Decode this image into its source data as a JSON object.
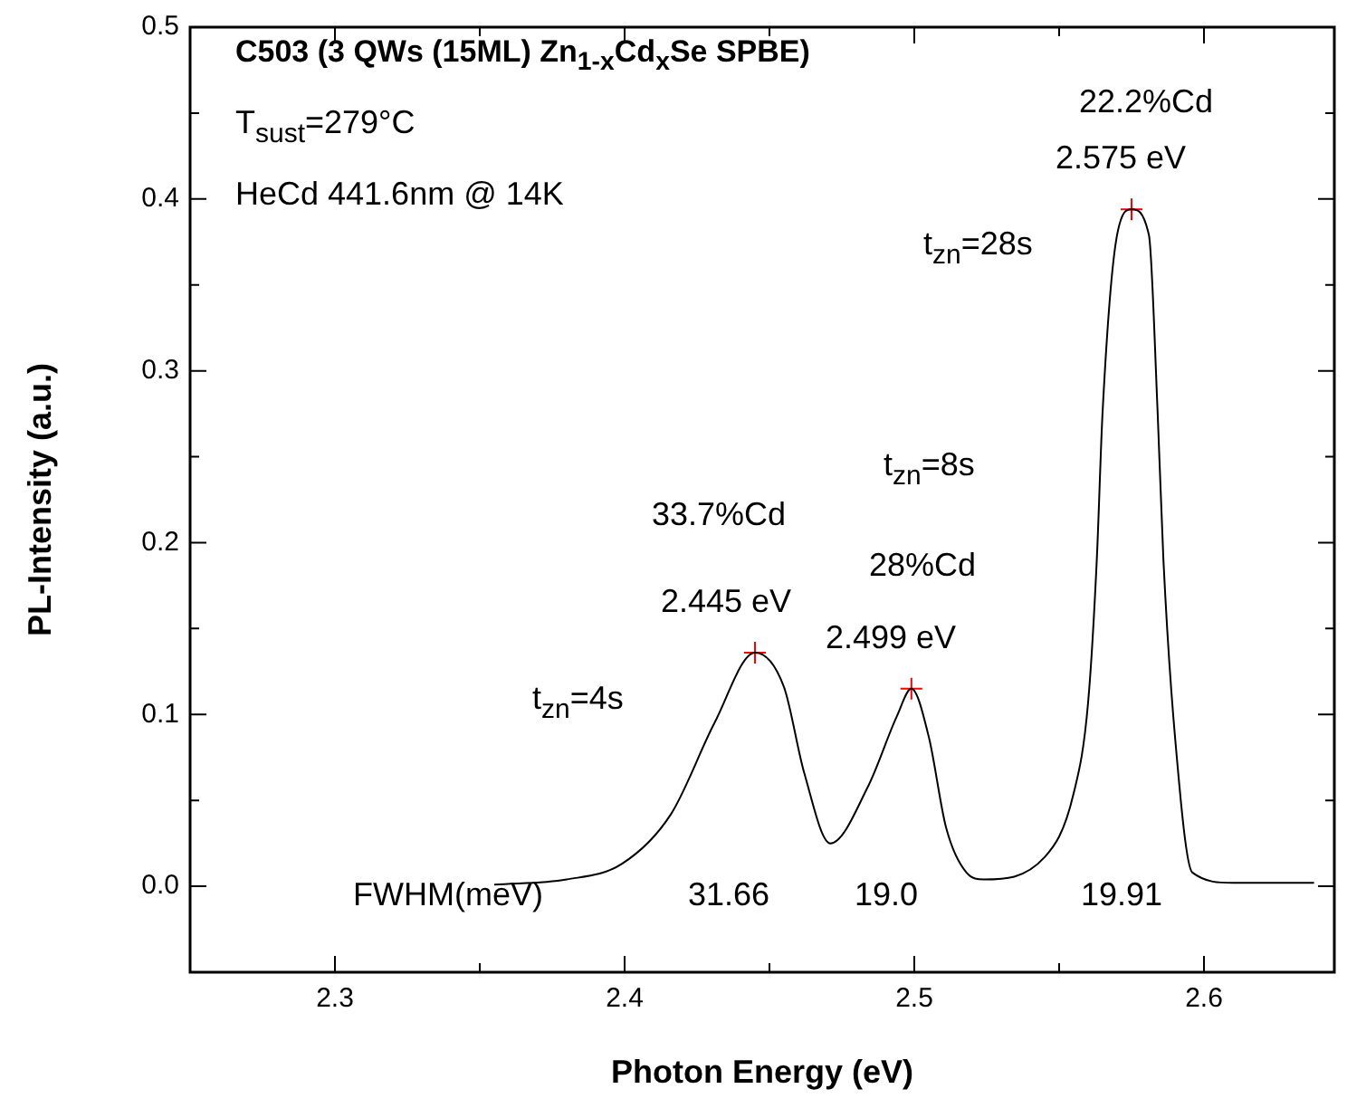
{
  "chart_data": {
    "type": "line",
    "title": "C503 (3 QWs (15ML) Zn$_{1-x}$Cd$_{x}$Se SPBE)",
    "xlabel": "Photon Energy (eV)",
    "ylabel": "PL-Intensity (a.u.)",
    "xlim": [
      2.25,
      2.645
    ],
    "ylim": [
      -0.05,
      0.5
    ],
    "xticks": [
      2.3,
      {
        "value": 2.35,
        "label": null
      },
      2.4,
      {
        "value": 2.45,
        "label": null
      },
      2.5,
      {
        "value": 2.55,
        "label": null
      },
      2.6
    ],
    "yticks": [
      {
        "value": 0,
        "label": "0.0"
      },
      {
        "value": 0.05,
        "label": null
      },
      0.1,
      {
        "value": 0.15,
        "label": null
      },
      0.2,
      {
        "value": 0.25,
        "label": null
      },
      0.3,
      {
        "value": 0.35,
        "label": null
      },
      0.4,
      {
        "value": 0.45,
        "label": null
      },
      0.5
    ],
    "legend": false,
    "series": [
      {
        "color": "#000000",
        "marker": "none",
        "x": [
          2.355,
          2.38,
          2.399,
          2.416,
          2.431,
          2.445,
          2.455,
          2.462,
          2.471,
          2.484,
          2.494,
          2.499,
          2.505,
          2.511,
          2.518,
          2.524,
          2.545,
          2.555,
          2.56,
          2.563,
          2.565,
          2.57,
          2.575,
          2.581,
          2.584,
          2.586,
          2.59,
          2.596,
          2.61,
          2.638
        ],
        "values": [
          0.001,
          0.004,
          0.013,
          0.042,
          0.095,
          0.136,
          0.116,
          0.066,
          0.025,
          0.058,
          0.099,
          0.115,
          0.087,
          0.034,
          0.008,
          0.004,
          0.017,
          0.054,
          0.107,
          0.19,
          0.276,
          0.379,
          0.394,
          0.379,
          0.276,
          0.19,
          0.087,
          0.008,
          0.002,
          0.002
        ]
      },
      {
        "type": "scatter",
        "color": "#ff0000",
        "marker": "cross",
        "x": [
          2.445,
          2.499,
          2.575
        ],
        "values": [
          0.136,
          0.115,
          0.394
        ]
      }
    ],
    "annotations": [
      "T$_{sust}$=279°C",
      "HeCd 441.6nm @ 14K",
      "22.2%Cd",
      "2.575 eV",
      "t$_{zn}$=28s",
      "t$_{zn}$=8s",
      "33.7%Cd",
      "28%Cd",
      "2.445 eV",
      "2.499 eV",
      "t$_{zn}$=4s",
      "FWHM(meV)",
      "31.66",
      "19.0",
      "19.91"
    ]
  }
}
